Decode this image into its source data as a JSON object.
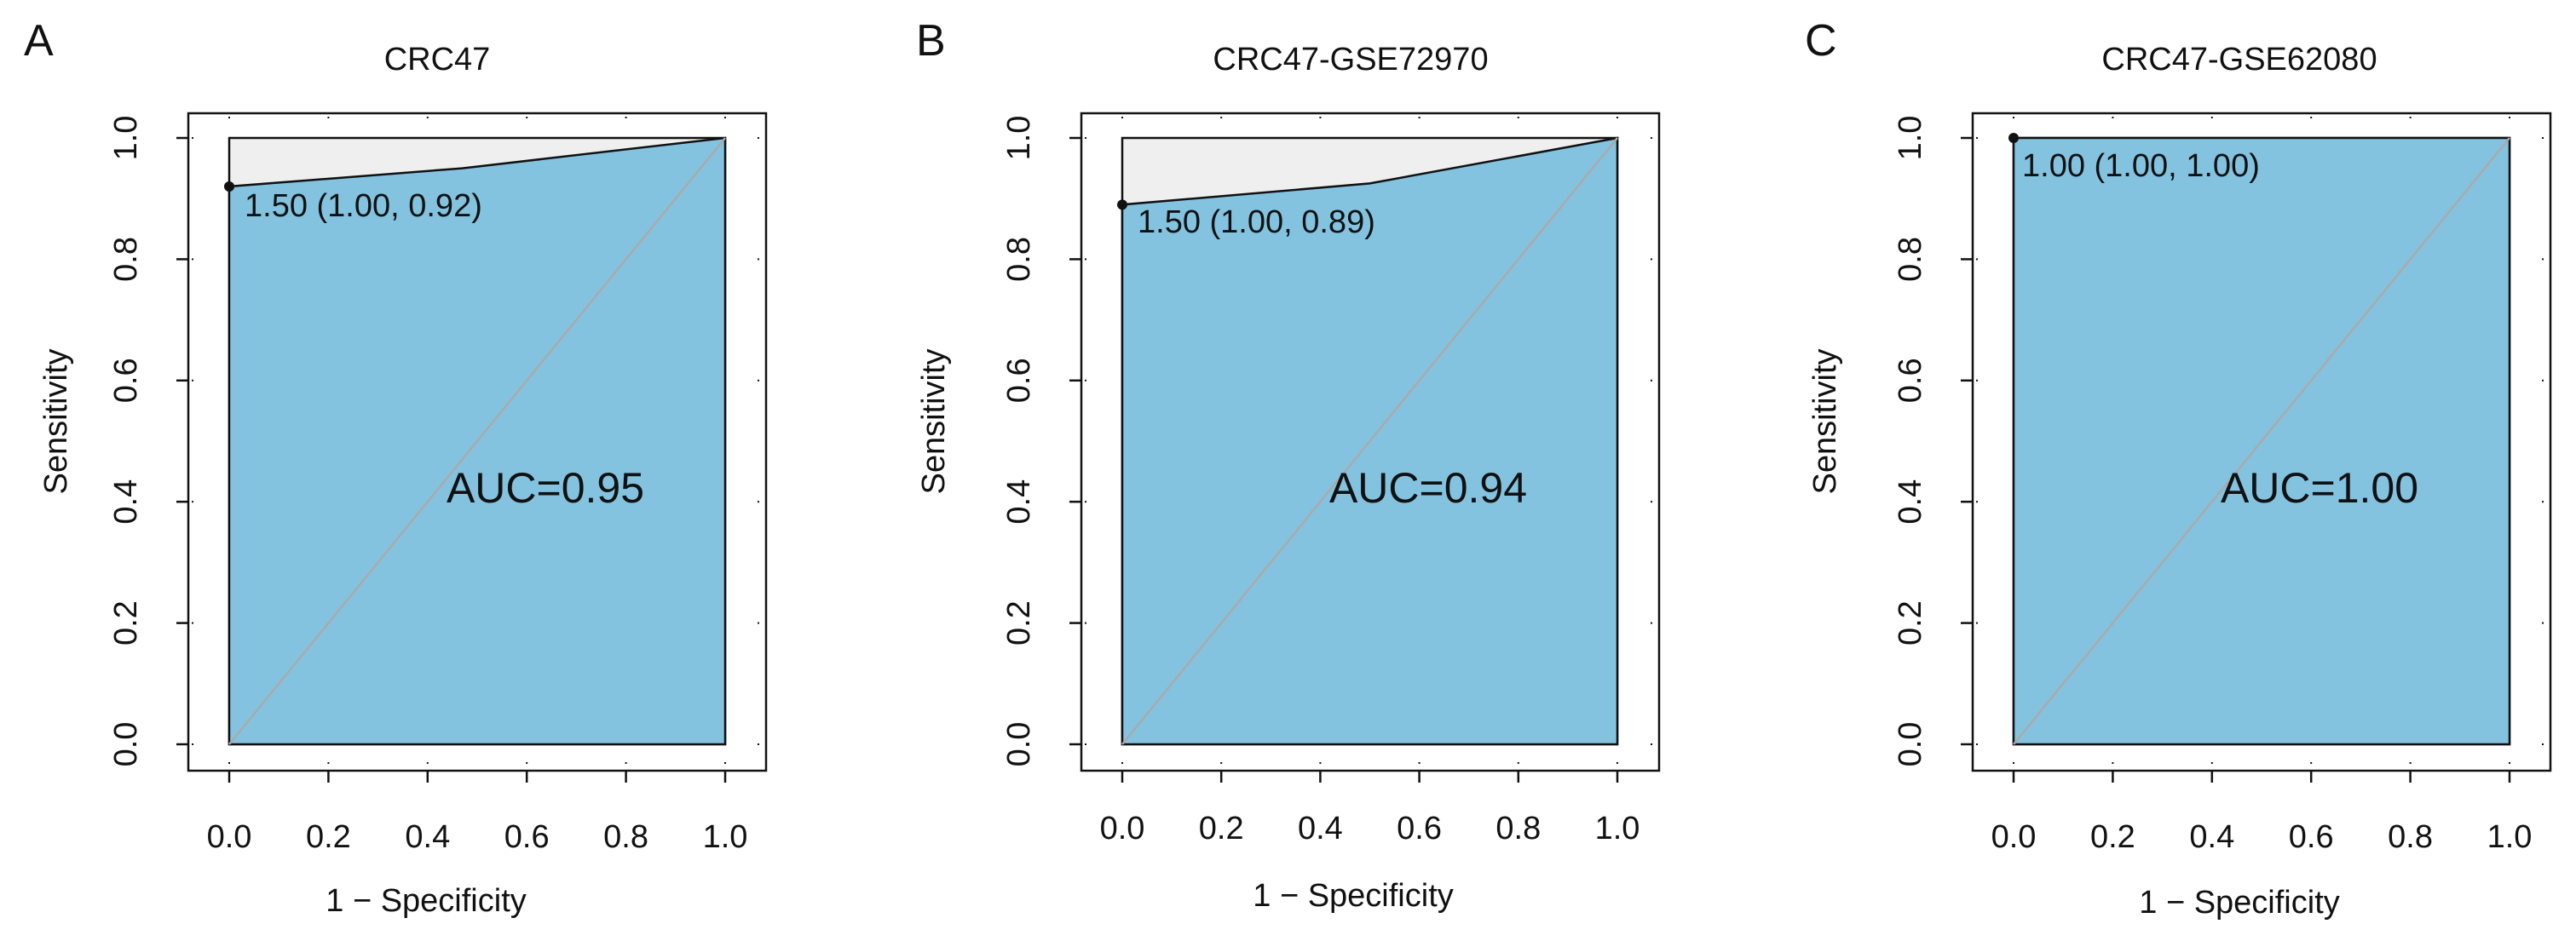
{
  "figure": {
    "panels": [
      {
        "letter": "A",
        "title": "CRC47",
        "xlabel": "1 − Specificity",
        "ylabel": "Sensitivity",
        "auc_label": "AUC=0.95",
        "threshold_label": "1.50 (1.00, 0.92)"
      },
      {
        "letter": "B",
        "title": "CRC47-GSE72970",
        "xlabel": "1 − Specificity",
        "ylabel": "Sensitivity",
        "auc_label": "AUC=0.94",
        "threshold_label": "1.50 (1.00, 0.89)"
      },
      {
        "letter": "C",
        "title": "CRC47-GSE62080",
        "xlabel": "1 − Specificity",
        "ylabel": "Sensitivity",
        "auc_label": "AUC=1.00",
        "threshold_label": "1.00 (1.00, 1.00)"
      }
    ]
  },
  "colors": {
    "fill": "#83c3e0",
    "upper_fill": "#efefef",
    "diagonal": "#aaaaaa",
    "line": "#111111"
  },
  "chart_data": [
    {
      "type": "area",
      "title": "CRC47",
      "xlabel": "1 − Specificity",
      "ylabel": "Sensitivity",
      "xlim": [
        0,
        1
      ],
      "ylim": [
        0,
        1
      ],
      "x_ticks": [
        "0.0",
        "0.2",
        "0.4",
        "0.6",
        "0.8",
        "1.0"
      ],
      "y_ticks": [
        "0.0",
        "0.2",
        "0.4",
        "0.6",
        "0.8",
        "1.0"
      ],
      "series": [
        {
          "x": [
            0.0,
            0.0,
            0.47,
            1.0,
            1.0
          ],
          "y": [
            0.0,
            0.92,
            0.95,
            1.0,
            0.0
          ]
        }
      ],
      "threshold_point": {
        "x": 0.0,
        "y": 0.92,
        "label": "1.50 (1.00, 0.92)"
      },
      "auc": "AUC=0.95",
      "grid": "dotted-ticks"
    },
    {
      "type": "area",
      "title": "CRC47-GSE72970",
      "xlabel": "1 − Specificity",
      "ylabel": "Sensitivity",
      "xlim": [
        0,
        1
      ],
      "ylim": [
        0,
        1
      ],
      "x_ticks": [
        "0.0",
        "0.2",
        "0.4",
        "0.6",
        "0.8",
        "1.0"
      ],
      "y_ticks": [
        "0.0",
        "0.2",
        "0.4",
        "0.6",
        "0.8",
        "1.0"
      ],
      "series": [
        {
          "x": [
            0.0,
            0.0,
            0.5,
            1.0,
            1.0
          ],
          "y": [
            0.0,
            0.89,
            0.925,
            1.0,
            0.0
          ]
        }
      ],
      "threshold_point": {
        "x": 0.0,
        "y": 0.89,
        "label": "1.50 (1.00, 0.89)"
      },
      "auc": "AUC=0.94",
      "grid": "dotted-ticks"
    },
    {
      "type": "area",
      "title": "CRC47-GSE62080",
      "xlabel": "1 − Specificity",
      "ylabel": "Sensitivity",
      "xlim": [
        0,
        1
      ],
      "ylim": [
        0,
        1
      ],
      "x_ticks": [
        "0.0",
        "0.2",
        "0.4",
        "0.6",
        "0.8",
        "1.0"
      ],
      "y_ticks": [
        "0.0",
        "0.2",
        "0.4",
        "0.6",
        "0.8",
        "1.0"
      ],
      "series": [
        {
          "x": [
            0.0,
            0.0,
            1.0,
            1.0
          ],
          "y": [
            0.0,
            1.0,
            1.0,
            0.0
          ]
        }
      ],
      "threshold_point": {
        "x": 0.0,
        "y": 1.0,
        "label": "1.00 (1.00, 1.00)"
      },
      "auc": "AUC=1.00",
      "grid": "dotted-ticks"
    }
  ]
}
